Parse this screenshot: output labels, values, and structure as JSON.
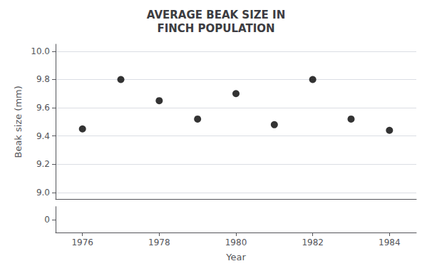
{
  "chart_data": [
    {
      "type": "scatter",
      "title": "AVERAGE BEAK SIZE IN\nFINCH POPULATION",
      "ylabel": "Beak size (mm)",
      "x": [
        1976,
        1977,
        1978,
        1979,
        1980,
        1981,
        1982,
        1983,
        1984
      ],
      "values": [
        9.45,
        9.8,
        9.65,
        9.52,
        9.7,
        9.48,
        9.8,
        9.52,
        9.44
      ],
      "color": "#000000",
      "xlim": [
        1975.3,
        1984.7
      ],
      "xticks": [
        1976,
        1978,
        1980,
        1982,
        1984
      ],
      "ylim": [
        8.95,
        10.05
      ],
      "yticks": [
        {
          "value": 9.0,
          "label": "9.0"
        },
        9.2,
        9.4,
        9.6,
        9.8,
        {
          "value": 10.0,
          "label": "10.0"
        }
      ],
      "grid": true,
      "tick_labels": "y"
    },
    {
      "type": "scatter",
      "xlabel": "Year",
      "xlim": [
        1975.3,
        1984.7
      ],
      "xticks": [
        1976,
        1978,
        1980,
        1982,
        1984
      ],
      "ylim": [
        -0.3,
        0.3
      ],
      "yticks": [
        0
      ],
      "grid": false
    }
  ]
}
